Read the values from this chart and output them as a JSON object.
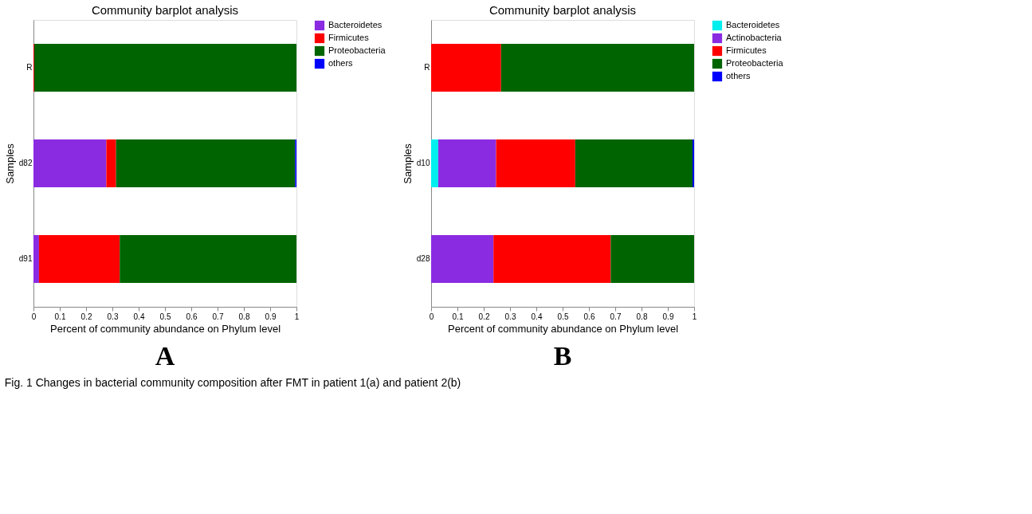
{
  "chart_data": [
    {
      "type": "bar",
      "orientation": "horizontal",
      "stacked": true,
      "title": "Community barplot analysis",
      "xlabel": "Percent of community abundance on Phylum level",
      "ylabel": "Samples",
      "categories": [
        "R",
        "d82",
        "d91"
      ],
      "xlim": [
        0,
        1
      ],
      "xticks": [
        0,
        0.1,
        0.2,
        0.3,
        0.4,
        0.5,
        0.6,
        0.7,
        0.8,
        0.9,
        1
      ],
      "grid": false,
      "legend": "top right",
      "series": [
        {
          "name": "Bacteroidetes",
          "color": "#8a2be2",
          "values": [
            0,
            0.277,
            0.021
          ]
        },
        {
          "name": "Firmicutes",
          "color": "#ff0000",
          "values": [
            0.003,
            0.037,
            0.307
          ]
        },
        {
          "name": "Proteobacteria",
          "color": "#006400",
          "values": [
            0.997,
            0.681,
            0.672
          ]
        },
        {
          "name": "others",
          "color": "#0000ff",
          "values": [
            0,
            0.005,
            0
          ]
        }
      ],
      "annotations": [
        "A",
        "Fig. 1 Changes in bacterial community composition after FMT in patient 1(a) and patient 2(b)"
      ]
    },
    {
      "type": "bar",
      "orientation": "horizontal",
      "stacked": true,
      "title": "Community barplot analysis",
      "xlabel": "Percent of community abundance on Phylum level",
      "ylabel": "Samples",
      "categories": [
        "R",
        "d10",
        "d28"
      ],
      "xlim": [
        0,
        1
      ],
      "xticks": [
        0,
        0.1,
        0.2,
        0.3,
        0.4,
        0.5,
        0.6,
        0.7,
        0.8,
        0.9,
        1
      ],
      "grid": false,
      "legend": "top right",
      "series": [
        {
          "name": "Bacteroidetes",
          "color": "#00eeee",
          "values": [
            0,
            0.027,
            0
          ]
        },
        {
          "name": "Actinobacteria",
          "color": "#8a2be2",
          "values": [
            0,
            0.22,
            0.237
          ]
        },
        {
          "name": "Firmicutes",
          "color": "#ff0000",
          "values": [
            0.266,
            0.301,
            0.446
          ]
        },
        {
          "name": "Proteobacteria",
          "color": "#006400",
          "values": [
            0.734,
            0.446,
            0.317
          ]
        },
        {
          "name": "others",
          "color": "#0000ff",
          "values": [
            0,
            0.006,
            0
          ]
        }
      ],
      "annotations": [
        "B"
      ]
    }
  ]
}
